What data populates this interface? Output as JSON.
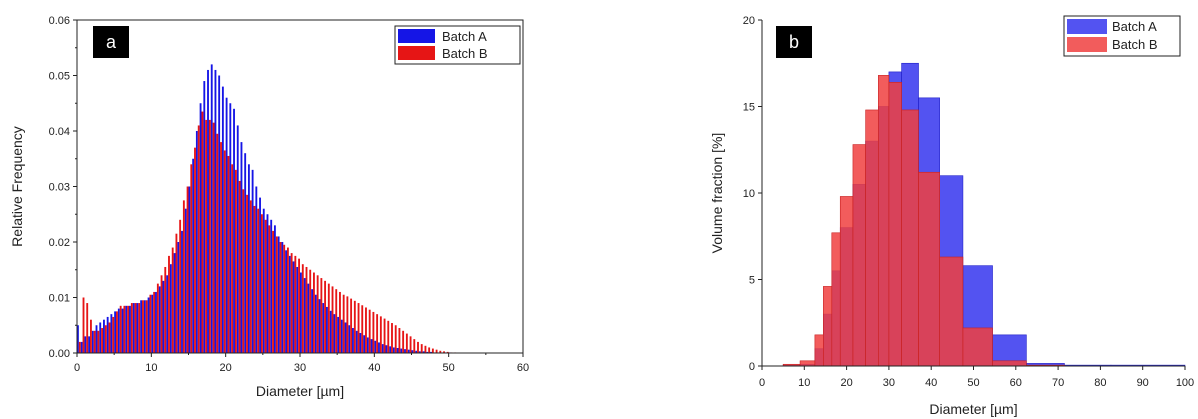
{
  "chart_data": [
    {
      "type": "bar",
      "panel_label": "a",
      "xlabel": "Diameter [µm]",
      "ylabel": "Relative Frequency",
      "xlim": [
        0,
        60
      ],
      "ylim": [
        0,
        0.06
      ],
      "x_ticks": [
        "0",
        "10",
        "20",
        "30",
        "40",
        "50",
        "60"
      ],
      "y_ticks": [
        "0.00",
        "0.01",
        "0.02",
        "0.03",
        "0.04",
        "0.05",
        "0.06"
      ],
      "legend_position": "top-right",
      "bin_width": 0.5,
      "series": [
        {
          "name": "Batch A",
          "color": "#1515e6",
          "x": [
            0.25,
            0.75,
            1.25,
            1.75,
            2.25,
            2.75,
            3.25,
            3.75,
            4.25,
            4.75,
            5.25,
            5.75,
            6.25,
            6.75,
            7.25,
            7.75,
            8.25,
            8.75,
            9.25,
            9.75,
            10.25,
            10.75,
            11.25,
            11.75,
            12.25,
            12.75,
            13.25,
            13.75,
            14.25,
            14.75,
            15.25,
            15.75,
            16.25,
            16.75,
            17.25,
            17.75,
            18.25,
            18.75,
            19.25,
            19.75,
            20.25,
            20.75,
            21.25,
            21.75,
            22.25,
            22.75,
            23.25,
            23.75,
            24.25,
            24.75,
            25.25,
            25.75,
            26.25,
            26.75,
            27.25,
            27.75,
            28.25,
            28.75,
            29.25,
            29.75,
            30.25,
            30.75,
            31.25,
            31.75,
            32.25,
            32.75,
            33.25,
            33.75,
            34.25,
            34.75,
            35.25,
            35.75,
            36.25,
            36.75,
            37.25,
            37.75,
            38.25,
            38.75,
            39.25,
            39.75,
            40.25,
            40.75,
            41.25,
            41.75,
            42.25,
            42.75,
            43.25,
            43.75,
            44.25,
            44.75,
            45.25,
            45.75,
            46.25,
            46.75,
            47.25,
            47.75,
            48.25,
            48.75,
            49.25,
            49.75,
            50.25,
            50.75,
            51.25,
            51.75,
            52.25,
            52.75,
            53.25,
            53.75
          ],
          "values": [
            0.005,
            0.002,
            0.003,
            0.003,
            0.004,
            0.005,
            0.0055,
            0.006,
            0.0065,
            0.007,
            0.0075,
            0.008,
            0.008,
            0.0085,
            0.0085,
            0.009,
            0.009,
            0.0095,
            0.0095,
            0.01,
            0.0105,
            0.011,
            0.012,
            0.013,
            0.014,
            0.016,
            0.018,
            0.02,
            0.022,
            0.026,
            0.03,
            0.035,
            0.04,
            0.045,
            0.049,
            0.051,
            0.052,
            0.051,
            0.05,
            0.048,
            0.046,
            0.045,
            0.044,
            0.041,
            0.038,
            0.036,
            0.034,
            0.033,
            0.03,
            0.028,
            0.026,
            0.025,
            0.024,
            0.023,
            0.021,
            0.02,
            0.0185,
            0.0175,
            0.0165,
            0.0155,
            0.0145,
            0.0135,
            0.0125,
            0.0115,
            0.0105,
            0.0097,
            0.009,
            0.0083,
            0.0076,
            0.007,
            0.0065,
            0.006,
            0.0055,
            0.005,
            0.0045,
            0.004,
            0.0036,
            0.0032,
            0.0028,
            0.0025,
            0.0022,
            0.0019,
            0.0016,
            0.0014,
            0.0012,
            0.001,
            0.0009,
            0.0008,
            0.0007,
            0.0006,
            0.0005,
            0.0004,
            0.0003,
            0.0003,
            0.0002,
            0.0002,
            0.0001,
            0.0001,
            0.0001,
            0.0001,
            0.0001,
            5e-05,
            5e-05,
            5e-05,
            3e-05,
            3e-05,
            2e-05,
            2e-05
          ]
        },
        {
          "name": "Batch B",
          "color": "#e61515",
          "x": [
            0.25,
            0.75,
            1.25,
            1.75,
            2.25,
            2.75,
            3.25,
            3.75,
            4.25,
            4.75,
            5.25,
            5.75,
            6.25,
            6.75,
            7.25,
            7.75,
            8.25,
            8.75,
            9.25,
            9.75,
            10.25,
            10.75,
            11.25,
            11.75,
            12.25,
            12.75,
            13.25,
            13.75,
            14.25,
            14.75,
            15.25,
            15.75,
            16.25,
            16.75,
            17.25,
            17.75,
            18.25,
            18.75,
            19.25,
            19.75,
            20.25,
            20.75,
            21.25,
            21.75,
            22.25,
            22.75,
            23.25,
            23.75,
            24.25,
            24.75,
            25.25,
            25.75,
            26.25,
            26.75,
            27.25,
            27.75,
            28.25,
            28.75,
            29.25,
            29.75,
            30.25,
            30.75,
            31.25,
            31.75,
            32.25,
            32.75,
            33.25,
            33.75,
            34.25,
            34.75,
            35.25,
            35.75,
            36.25,
            36.75,
            37.25,
            37.75,
            38.25,
            38.75,
            39.25,
            39.75,
            40.25,
            40.75,
            41.25,
            41.75,
            42.25,
            42.75,
            43.25,
            43.75,
            44.25,
            44.75,
            45.25,
            45.75,
            46.25,
            46.75,
            47.25,
            47.75,
            48.25,
            48.75,
            49.25,
            49.75,
            50.25,
            50.75,
            51.25,
            51.75,
            52.25,
            52.75,
            53.25,
            53.75
          ],
          "values": [
            0.002,
            0.01,
            0.009,
            0.006,
            0.004,
            0.004,
            0.0045,
            0.005,
            0.0055,
            0.0065,
            0.0075,
            0.0085,
            0.0085,
            0.0085,
            0.009,
            0.009,
            0.009,
            0.0095,
            0.0095,
            0.0105,
            0.011,
            0.0125,
            0.014,
            0.0155,
            0.0175,
            0.019,
            0.0215,
            0.024,
            0.0275,
            0.03,
            0.034,
            0.037,
            0.041,
            0.0435,
            0.042,
            0.042,
            0.0415,
            0.0395,
            0.038,
            0.0365,
            0.0355,
            0.034,
            0.033,
            0.031,
            0.0295,
            0.0285,
            0.0275,
            0.0265,
            0.026,
            0.025,
            0.024,
            0.023,
            0.022,
            0.021,
            0.02,
            0.0195,
            0.019,
            0.018,
            0.0175,
            0.017,
            0.016,
            0.0155,
            0.015,
            0.0145,
            0.014,
            0.0135,
            0.013,
            0.0125,
            0.012,
            0.0115,
            0.011,
            0.0105,
            0.0102,
            0.0098,
            0.0094,
            0.009,
            0.0086,
            0.0082,
            0.0078,
            0.0074,
            0.007,
            0.0066,
            0.0062,
            0.0058,
            0.0054,
            0.005,
            0.0045,
            0.004,
            0.0035,
            0.003,
            0.0025,
            0.002,
            0.0016,
            0.0013,
            0.001,
            0.0008,
            0.0006,
            0.0004,
            0.0003,
            0.0002,
            0.0001,
            0.0001,
            5e-05,
            5e-05,
            3e-05,
            2e-05,
            1e-05,
            1e-05
          ]
        }
      ]
    },
    {
      "type": "bar",
      "panel_label": "b",
      "xlabel": "Diameter [µm]",
      "ylabel": "Volume fraction [%]",
      "xlim": [
        0,
        100
      ],
      "ylim": [
        0,
        20
      ],
      "x_ticks": [
        "0",
        "10",
        "20",
        "30",
        "40",
        "50",
        "60",
        "70",
        "80",
        "90",
        "100"
      ],
      "y_ticks": [
        "0",
        "5",
        "10",
        "15",
        "20"
      ],
      "legend_position": "top-right",
      "series": [
        {
          "name": "Batch A",
          "color": "#3535ef",
          "bin_edges": [
            5,
            9,
            12.5,
            14.5,
            16.5,
            18.5,
            21.5,
            24.5,
            27.5,
            30,
            33,
            37,
            42,
            47.5,
            54.5,
            62.5,
            71.5,
            82.5,
            100
          ],
          "values": [
            0.05,
            0.1,
            1.0,
            3.0,
            5.5,
            8.0,
            10.5,
            13.0,
            15.0,
            17.0,
            17.5,
            15.5,
            11.0,
            5.8,
            1.8,
            0.15,
            0.05,
            0.05
          ]
        },
        {
          "name": "Batch B",
          "color": "#f04040",
          "bin_edges": [
            5,
            9,
            12.5,
            14.5,
            16.5,
            18.5,
            21.5,
            24.5,
            27.5,
            30,
            33,
            37,
            42,
            47.5,
            54.5,
            62.5,
            71.5,
            82.5,
            100
          ],
          "values": [
            0.1,
            0.3,
            1.8,
            4.6,
            7.7,
            9.8,
            12.8,
            14.8,
            16.8,
            16.4,
            14.8,
            11.2,
            6.3,
            2.2,
            0.3,
            0.05,
            0.0,
            0.0
          ]
        }
      ]
    }
  ]
}
